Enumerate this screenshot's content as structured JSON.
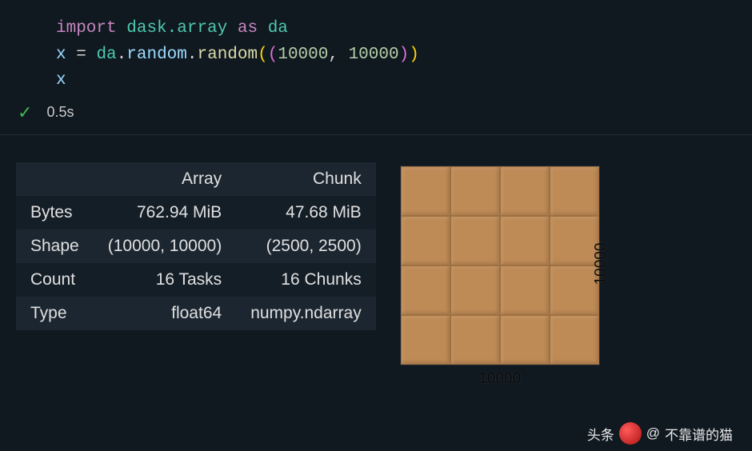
{
  "code": {
    "line1": {
      "import": "import",
      "mod": "dask.array",
      "as": "as",
      "alias": "da"
    },
    "line2": {
      "var": "x",
      "eq": "=",
      "obj": "da",
      "dot1": ".",
      "m1": "random",
      "dot2": ".",
      "m2": "random",
      "args_open": "((",
      "n1": "10000",
      "comma": ", ",
      "n2": "10000",
      "args_close": "))"
    },
    "line3": {
      "var": "x"
    }
  },
  "status": {
    "check": "✓",
    "time": "0.5s"
  },
  "table": {
    "headers": [
      "",
      "Array",
      "Chunk"
    ],
    "rows": [
      {
        "label": "Bytes",
        "array": "762.94 MiB",
        "chunk": "47.68 MiB"
      },
      {
        "label": "Shape",
        "array": "(10000, 10000)",
        "chunk": "(2500, 2500)"
      },
      {
        "label": "Count",
        "array": "16 Tasks",
        "chunk": "16 Chunks"
      },
      {
        "label": "Type",
        "array": "float64",
        "chunk": "numpy.ndarray"
      }
    ]
  },
  "viz": {
    "grid_n": 4,
    "block_color": "#be8a55",
    "block_border": "#a0703f",
    "axis_x": "10000",
    "axis_y": "10000"
  },
  "credit": {
    "prefix": "头条",
    "at": "@",
    "name": "不靠谱的猫"
  },
  "colors": {
    "bg": "#101820",
    "row_odd": "#1b2630",
    "row_even": "#141e27",
    "check": "#3fb94f"
  }
}
